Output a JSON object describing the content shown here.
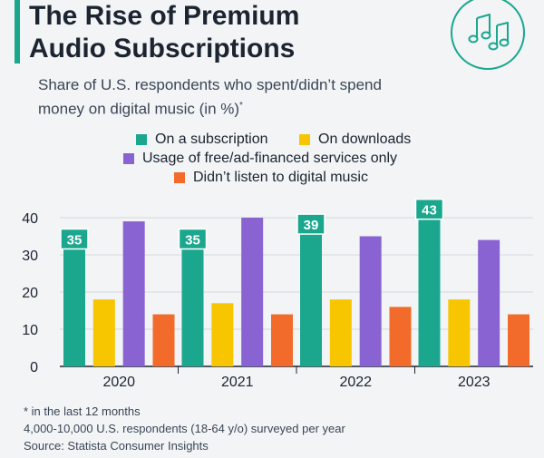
{
  "header": {
    "title_line1": "The Rise of Premium",
    "title_line2": "Audio Subscriptions",
    "subtitle_line1": "Share of U.S. respondents who spent/didn’t spend",
    "subtitle_line2": "money on digital music (in %)",
    "subtitle_mark": "*"
  },
  "badge_icon": "music-notes-icon",
  "colors": {
    "subscription": "#1aa78e",
    "downloads": "#f7c600",
    "free": "#8a63d2",
    "didnt_listen": "#f26b2a",
    "accent": "#1aa78e"
  },
  "legend": {
    "subscription": "On a subscription",
    "downloads": "On downloads",
    "free": "Usage of free/ad-financed services only",
    "didnt_listen": "Didn’t listen to digital music"
  },
  "chart_data": {
    "type": "bar",
    "categories": [
      "2020",
      "2021",
      "2022",
      "2023"
    ],
    "series": [
      {
        "name": "On a subscription",
        "values": [
          35,
          35,
          39,
          43
        ],
        "color": "#1aa78e",
        "labeled": true
      },
      {
        "name": "On downloads",
        "values": [
          18,
          17,
          18,
          18
        ],
        "color": "#f7c600"
      },
      {
        "name": "Usage of free/ad-financed services only",
        "values": [
          39,
          40,
          35,
          34
        ],
        "color": "#8a63d2"
      },
      {
        "name": "Didn’t listen to digital music",
        "values": [
          14,
          14,
          16,
          14
        ],
        "color": "#f26b2a"
      }
    ],
    "yticks": [
      0,
      10,
      20,
      30,
      40
    ],
    "ylim": [
      0,
      45
    ],
    "grid": true,
    "legend_position": "top"
  },
  "footnotes": {
    "note": "* in the last 12 months",
    "sample": "4,000-10,000 U.S. respondents (18-64 y/o) surveyed per year",
    "source": "Source: Statista Consumer Insights"
  }
}
